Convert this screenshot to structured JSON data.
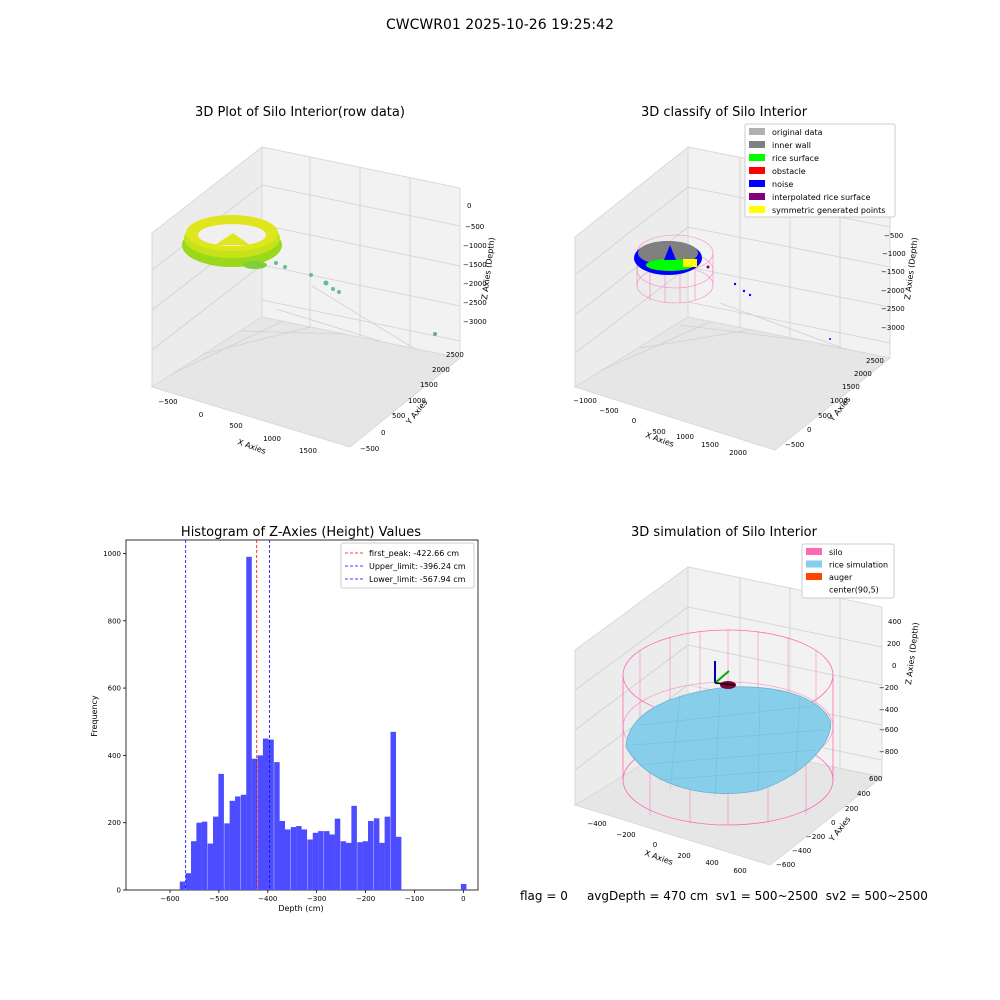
{
  "figure_title": "CWCWR01 2025-10-26 19:25:42",
  "status": {
    "flag": "flag = 0",
    "avg_depth": "avgDepth = 470 cm",
    "sv1": "sv1 = 500~2500",
    "sv2": "sv2 = 500~2500"
  },
  "colors": {
    "hist_bar": "#4d4dff",
    "first_peak": "#ff0000",
    "limits": "#0000ff",
    "silo_wire": "#ff69b4",
    "rice": "#87ceeb",
    "auger": "#ff4500",
    "grid_pane": "#f2f2f2"
  },
  "chart_data": [
    {
      "type": "scatter",
      "projection": "3d",
      "title": "3D Plot of Silo Interior(row data)",
      "xlabel": "X Axies",
      "ylabel": "Y Axies",
      "zlabel": "Z Axies (Depth)",
      "x_ticks": [
        "−500",
        "0",
        "500",
        "1000",
        "1500"
      ],
      "y_ticks": [
        "−500",
        "0",
        "500",
        "1000",
        "1500",
        "2000",
        "2500"
      ],
      "z_ticks": [
        "0",
        "−500",
        "−1000",
        "−1500",
        "−2000",
        "−2500",
        "−3000"
      ],
      "colormap": "viridis-like (yellow to green)",
      "grid": true
    },
    {
      "type": "scatter",
      "projection": "3d",
      "title": "3D classify of Silo Interior",
      "xlabel": "X Axies",
      "ylabel": "Y Axies",
      "zlabel": "Z Axies (Depth)",
      "x_ticks": [
        "−1000",
        "−500",
        "0",
        "500",
        "1000",
        "1500",
        "2000"
      ],
      "y_ticks": [
        "−500",
        "0",
        "500",
        "1000",
        "1500",
        "2000",
        "2500"
      ],
      "z_ticks": [
        "−500",
        "−1000",
        "−1500",
        "−2000",
        "−2500",
        "−3000"
      ],
      "legend_position": "top-right",
      "legend": [
        {
          "label": "original data",
          "color": "#b0b0b0"
        },
        {
          "label": "inner wall",
          "color": "#808080"
        },
        {
          "label": "rice surface",
          "color": "#00ff00"
        },
        {
          "label": "obstacle",
          "color": "#ff0000"
        },
        {
          "label": "noise",
          "color": "#0000ff"
        },
        {
          "label": "interpolated rice surface",
          "color": "#800080"
        },
        {
          "label": "symmetric generated points",
          "color": "#ffff00"
        }
      ],
      "grid": true
    },
    {
      "type": "bar",
      "subtype": "histogram",
      "title": "Histogram of Z-Axies (Height) Values",
      "xlabel": "Depth (cm)",
      "ylabel": "Frequency",
      "xlim": [
        -690,
        30
      ],
      "ylim": [
        0,
        1040
      ],
      "x_ticks": [
        -600,
        -500,
        -400,
        -300,
        -200,
        -100,
        0
      ],
      "x_tick_labels": [
        "−600",
        "−500",
        "−400",
        "−300",
        "−200",
        "−100",
        "0"
      ],
      "y_ticks": [
        0,
        200,
        400,
        600,
        800,
        1000
      ],
      "y_tick_labels": [
        "0",
        "200",
        "400",
        "600",
        "800",
        "1000"
      ],
      "bin_width": 11.3,
      "bins": [
        {
          "x": -580,
          "count": 25
        },
        {
          "x": -568,
          "count": 50
        },
        {
          "x": -557,
          "count": 145
        },
        {
          "x": -546,
          "count": 200
        },
        {
          "x": -535,
          "count": 203
        },
        {
          "x": -523,
          "count": 138
        },
        {
          "x": -512,
          "count": 218
        },
        {
          "x": -501,
          "count": 345
        },
        {
          "x": -489,
          "count": 198
        },
        {
          "x": -478,
          "count": 265
        },
        {
          "x": -467,
          "count": 278
        },
        {
          "x": -455,
          "count": 283
        },
        {
          "x": -444,
          "count": 990
        },
        {
          "x": -433,
          "count": 390
        },
        {
          "x": -421,
          "count": 400
        },
        {
          "x": -410,
          "count": 450
        },
        {
          "x": -399,
          "count": 447
        },
        {
          "x": -387,
          "count": 380
        },
        {
          "x": -376,
          "count": 205
        },
        {
          "x": -365,
          "count": 180
        },
        {
          "x": -353,
          "count": 187
        },
        {
          "x": -342,
          "count": 190
        },
        {
          "x": -331,
          "count": 180
        },
        {
          "x": -319,
          "count": 150
        },
        {
          "x": -308,
          "count": 170
        },
        {
          "x": -297,
          "count": 175
        },
        {
          "x": -285,
          "count": 175
        },
        {
          "x": -274,
          "count": 165
        },
        {
          "x": -263,
          "count": 212
        },
        {
          "x": -251,
          "count": 145
        },
        {
          "x": -240,
          "count": 140
        },
        {
          "x": -229,
          "count": 250
        },
        {
          "x": -217,
          "count": 142
        },
        {
          "x": -206,
          "count": 145
        },
        {
          "x": -195,
          "count": 205
        },
        {
          "x": -183,
          "count": 213
        },
        {
          "x": -172,
          "count": 140
        },
        {
          "x": -161,
          "count": 218
        },
        {
          "x": -149,
          "count": 470
        },
        {
          "x": -138,
          "count": 158
        },
        {
          "x": -5,
          "count": 18
        }
      ],
      "lines": [
        {
          "label": "first_peak: -422.66 cm",
          "x": -422.66,
          "color": "#ff0000"
        },
        {
          "label": "Upper_limit: -396.24 cm",
          "x": -396.24,
          "color": "#0000ff"
        },
        {
          "label": "Lower_limit: -567.94 cm",
          "x": -567.94,
          "color": "#0000ff"
        }
      ],
      "legend_position": "top-right"
    },
    {
      "type": "surface",
      "projection": "3d",
      "title": "3D simulation of Silo Interior",
      "xlabel": "X Axies",
      "ylabel": "Y Axies",
      "zlabel": "Z Axies (Depth)",
      "x_ticks": [
        "−400",
        "−200",
        "0",
        "200",
        "400",
        "600"
      ],
      "y_ticks": [
        "−600",
        "−400",
        "−200",
        "0",
        "200",
        "400",
        "600"
      ],
      "z_ticks": [
        "400",
        "200",
        "0",
        "−200",
        "−400",
        "−600",
        "−800"
      ],
      "legend_position": "top-right",
      "legend": [
        {
          "label": "silo",
          "color": "#ff69b4"
        },
        {
          "label": "rice simulation",
          "color": "#87ceeb"
        },
        {
          "label": "auger",
          "color": "#ff4500"
        },
        {
          "label": "center(90,5)",
          "color": ""
        }
      ],
      "grid": true
    }
  ]
}
